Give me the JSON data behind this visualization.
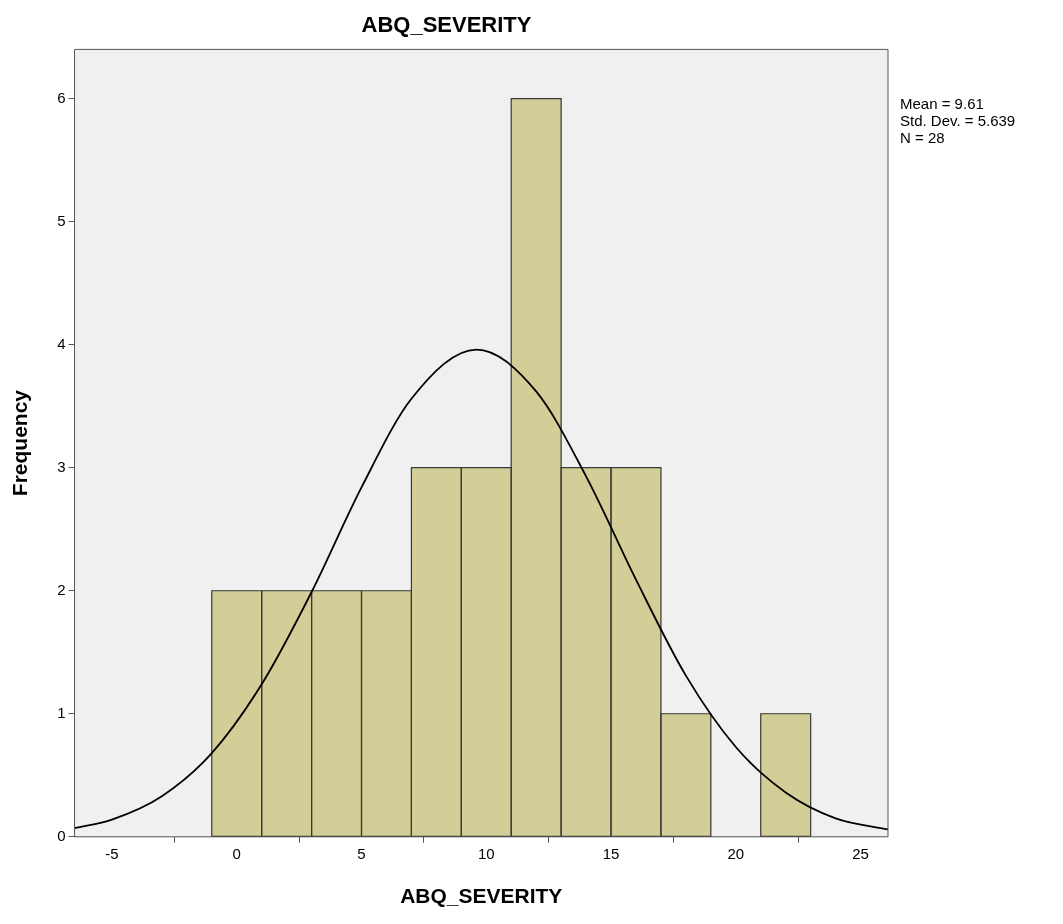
{
  "chart_data": {
    "type": "histogram",
    "title": "ABQ_SEVERITY",
    "xlabel": "ABQ_SEVERITY",
    "ylabel": "Frequency",
    "bins": [
      -1,
      1,
      3,
      5,
      7,
      9,
      11,
      13,
      15,
      17,
      19,
      21,
      23
    ],
    "values": [
      2,
      2,
      2,
      2,
      3,
      3,
      6,
      3,
      3,
      1,
      0,
      1
    ],
    "color": "#d3ce97",
    "series": [
      {
        "type": "line",
        "color": "#000000",
        "x": [
          -6.5,
          -5,
          -3,
          -1,
          1,
          3,
          5,
          7,
          9.61,
          12,
          14,
          16,
          18,
          20,
          22,
          24,
          26.1
        ],
        "values": [
          0.07,
          0.14,
          0.33,
          0.68,
          1.24,
          1.99,
          2.84,
          3.56,
          3.96,
          3.62,
          2.93,
          2.09,
          1.31,
          0.73,
          0.36,
          0.15,
          0.06
        ]
      }
    ],
    "xlim": [
      -6.5,
      26.1
    ],
    "xticks": [
      -5,
      0,
      5,
      10,
      15,
      20,
      25
    ],
    "ylim": [
      0,
      6.4
    ],
    "yticks": [
      0,
      1,
      2,
      3,
      4,
      5,
      6
    ],
    "grid": false,
    "legend": false,
    "annotations": [
      "Mean = 9.61",
      "Std. Dev. = 5.639",
      "N = 28"
    ]
  }
}
